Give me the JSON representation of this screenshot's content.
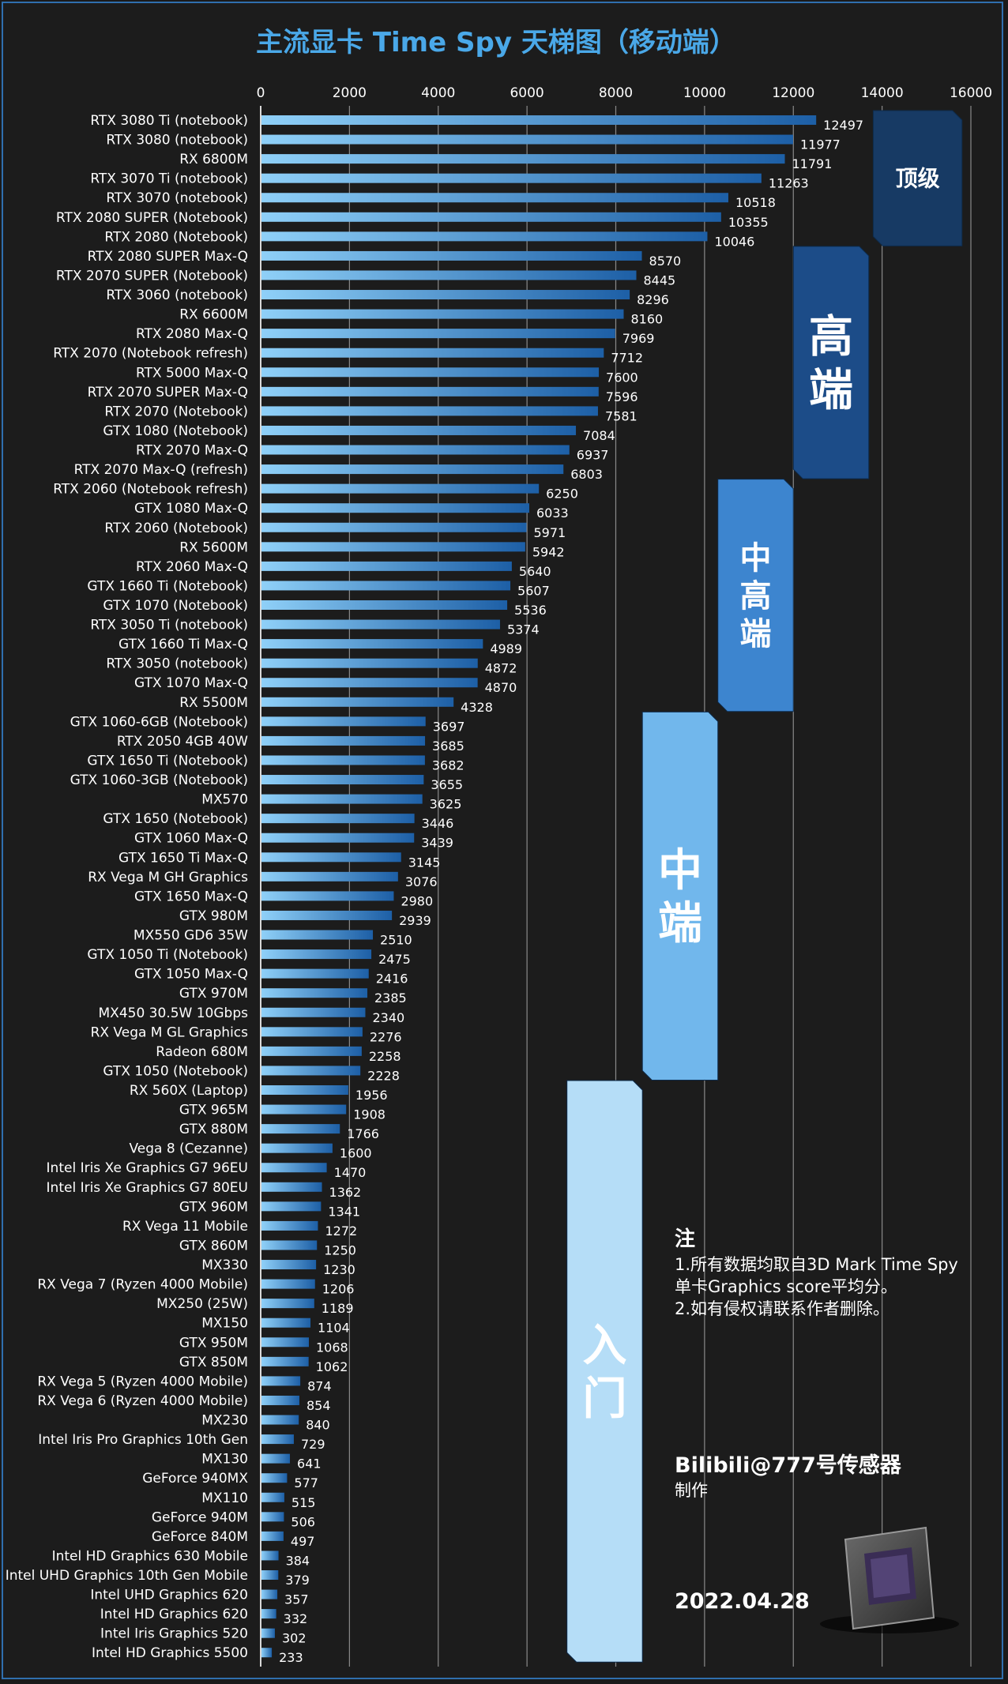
{
  "chart_data": {
    "type": "bar",
    "orientation": "horizontal",
    "title": "主流显卡 Time Spy 天梯图（移动端）",
    "xlim": [
      0,
      16000
    ],
    "xticks": [
      0,
      2000,
      4000,
      6000,
      8000,
      10000,
      12000,
      14000,
      16000
    ],
    "grid": true,
    "categories": [
      "RTX 3080 Ti (notebook)",
      "RTX 3080 (notebook)",
      "RX 6800M",
      "RTX 3070 Ti (notebook)",
      "RTX 3070 (notebook)",
      "RTX 2080 SUPER (Notebook)",
      "RTX 2080 (Notebook)",
      "RTX 2080 SUPER Max-Q",
      "RTX 2070 SUPER (Notebook)",
      "RTX 3060 (notebook)",
      "RX 6600M",
      "RTX 2080 Max-Q",
      "RTX 2070 (Notebook refresh)",
      "RTX 5000 Max-Q",
      "RTX 2070 SUPER Max-Q",
      "RTX 2070 (Notebook)",
      "GTX 1080 (Notebook)",
      "RTX 2070 Max-Q",
      "RTX 2070 Max-Q (refresh)",
      "RTX 2060 (Notebook refresh)",
      "GTX 1080 Max-Q",
      "RTX 2060 (Notebook)",
      "RX 5600M",
      "RTX 2060 Max-Q",
      "GTX 1660 Ti (Notebook)",
      "GTX 1070 (Notebook)",
      "RTX 3050 Ti (notebook)",
      "GTX 1660 Ti Max-Q",
      "RTX 3050 (notebook)",
      "GTX 1070 Max-Q",
      "RX 5500M",
      "GTX 1060-6GB (Notebook)",
      "RTX 2050 4GB 40W",
      "GTX 1650 Ti (Notebook)",
      "GTX 1060-3GB (Notebook)",
      "MX570",
      "GTX 1650 (Notebook)",
      "GTX 1060 Max-Q",
      "GTX 1650 Ti Max-Q",
      "RX Vega M GH Graphics",
      "GTX 1650 Max-Q",
      "GTX 980M",
      "MX550 GD6 35W",
      "GTX 1050 Ti (Notebook)",
      "GTX 1050 Max-Q",
      "GTX 970M",
      "MX450 30.5W 10Gbps",
      "RX Vega M GL Graphics",
      "Radeon 680M",
      "GTX 1050 (Notebook)",
      "RX 560X (Laptop)",
      "GTX 965M",
      "GTX 880M",
      "Vega 8 (Cezanne)",
      "Intel Iris Xe Graphics G7 96EU",
      "Intel Iris Xe Graphics G7 80EU",
      "GTX 960M",
      "RX Vega 11 Mobile",
      "GTX 860M",
      "MX330",
      "RX Vega 7 (Ryzen 4000 Mobile)",
      "MX250 (25W)",
      "MX150",
      "GTX 950M",
      "GTX 850M",
      "RX Vega 5 (Ryzen 4000 Mobile)",
      "RX Vega 6 (Ryzen 4000 Mobile)",
      "MX230",
      "Intel Iris Pro Graphics 10th Gen",
      "MX130",
      "GeForce 940MX",
      "MX110",
      "GeForce 940M",
      "GeForce 840M",
      "Intel HD Graphics 630 Mobile",
      "Intel UHD Graphics 10th Gen Mobile",
      "Intel UHD Graphics 620",
      "Intel HD Graphics 620",
      "Intel Iris Graphics 520",
      "Intel HD Graphics 5500"
    ],
    "values": [
      12497,
      11977,
      11791,
      11263,
      10518,
      10355,
      10046,
      8570,
      8445,
      8296,
      8160,
      7969,
      7712,
      7600,
      7596,
      7581,
      7084,
      6937,
      6803,
      6250,
      6033,
      5971,
      5942,
      5640,
      5607,
      5536,
      5374,
      4989,
      4872,
      4870,
      4328,
      3697,
      3685,
      3682,
      3655,
      3625,
      3446,
      3439,
      3145,
      3076,
      2980,
      2939,
      2510,
      2475,
      2416,
      2385,
      2340,
      2276,
      2258,
      2228,
      1956,
      1908,
      1766,
      1600,
      1470,
      1362,
      1341,
      1272,
      1250,
      1230,
      1206,
      1189,
      1104,
      1068,
      1062,
      874,
      854,
      840,
      729,
      641,
      577,
      515,
      506,
      497,
      384,
      379,
      357,
      332,
      302,
      233
    ],
    "tiers": [
      {
        "label": "顶级",
        "first": 0,
        "last": 6,
        "x_from": 13800,
        "x_to": 15800,
        "color": "#173a64"
      },
      {
        "label": "高端",
        "first": 7,
        "last": 18,
        "x_from": 12000,
        "x_to": 13700,
        "color": "#1c4c88"
      },
      {
        "label": "中高端",
        "first": 19,
        "last": 30,
        "x_from": 10300,
        "x_to": 12000,
        "color": "#3d85cf"
      },
      {
        "label": "中端",
        "first": 31,
        "last": 49,
        "x_from": 8600,
        "x_to": 10300,
        "color": "#71b7ec"
      },
      {
        "label": "入门",
        "first": 50,
        "last": 79,
        "x_from": 6900,
        "x_to": 8600,
        "color": "#b5ddf7"
      }
    ]
  },
  "notes": {
    "title": "注",
    "line1": "1.所有数据均取自3D Mark Time Spy",
    "line2": "单卡Graphics score平均分。",
    "line3": "2.如有侵权请联系作者删除。"
  },
  "credit": {
    "author": "Bilibili@777号传感器",
    "made": "制作"
  },
  "date": "2022.04.28"
}
